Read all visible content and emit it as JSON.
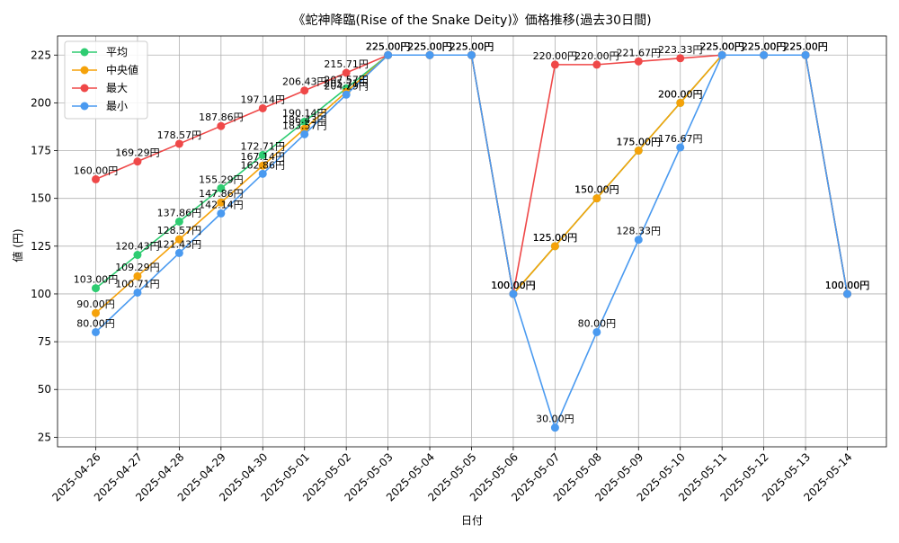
{
  "chart_data": {
    "type": "line",
    "title": "《蛇神降臨(Rise of the Snake Deity)》価格推移(過去30日間)",
    "xlabel": "日付",
    "ylabel": "値 (円)",
    "ylim": [
      20,
      235
    ],
    "yticks": [
      25,
      50,
      75,
      100,
      125,
      150,
      175,
      200,
      225
    ],
    "grid": true,
    "legend_position": "top-left",
    "label_suffix": "円",
    "x": [
      "2025-04-26",
      "2025-04-27",
      "2025-04-28",
      "2025-04-29",
      "2025-04-30",
      "2025-05-01",
      "2025-05-02",
      "2025-05-03",
      "2025-05-04",
      "2025-05-05",
      "2025-05-06",
      "2025-05-07",
      "2025-05-08",
      "2025-05-09",
      "2025-05-10",
      "2025-05-11",
      "2025-05-12",
      "2025-05-13",
      "2025-05-14"
    ],
    "series": [
      {
        "name": "平均",
        "color": "#2ecc71",
        "values": [
          103.0,
          120.43,
          137.86,
          155.29,
          172.71,
          190.14,
          207.57,
          225.0,
          225.0,
          225.0,
          100.0,
          125.0,
          150.0,
          175.0,
          200.0,
          225.0,
          225.0,
          225.0,
          100.0
        ]
      },
      {
        "name": "中央値",
        "color": "#f5a20a",
        "values": [
          90.0,
          109.29,
          128.57,
          147.86,
          167.14,
          186.43,
          205.71,
          225.0,
          225.0,
          225.0,
          100.0,
          125.0,
          150.0,
          175.0,
          200.0,
          225.0,
          225.0,
          225.0,
          100.0
        ]
      },
      {
        "name": "最大",
        "color": "#ef4848",
        "values": [
          160.0,
          169.29,
          178.57,
          187.86,
          197.14,
          206.43,
          215.71,
          225.0,
          225.0,
          225.0,
          100.0,
          220.0,
          220.0,
          221.67,
          223.33,
          225.0,
          225.0,
          225.0,
          100.0
        ]
      },
      {
        "name": "最小",
        "color": "#4a9af0",
        "values": [
          80.0,
          100.71,
          121.43,
          142.14,
          162.86,
          183.57,
          204.29,
          225.0,
          225.0,
          225.0,
          100.0,
          30.0,
          80.0,
          128.33,
          176.67,
          225.0,
          225.0,
          225.0,
          100.0
        ]
      }
    ]
  }
}
